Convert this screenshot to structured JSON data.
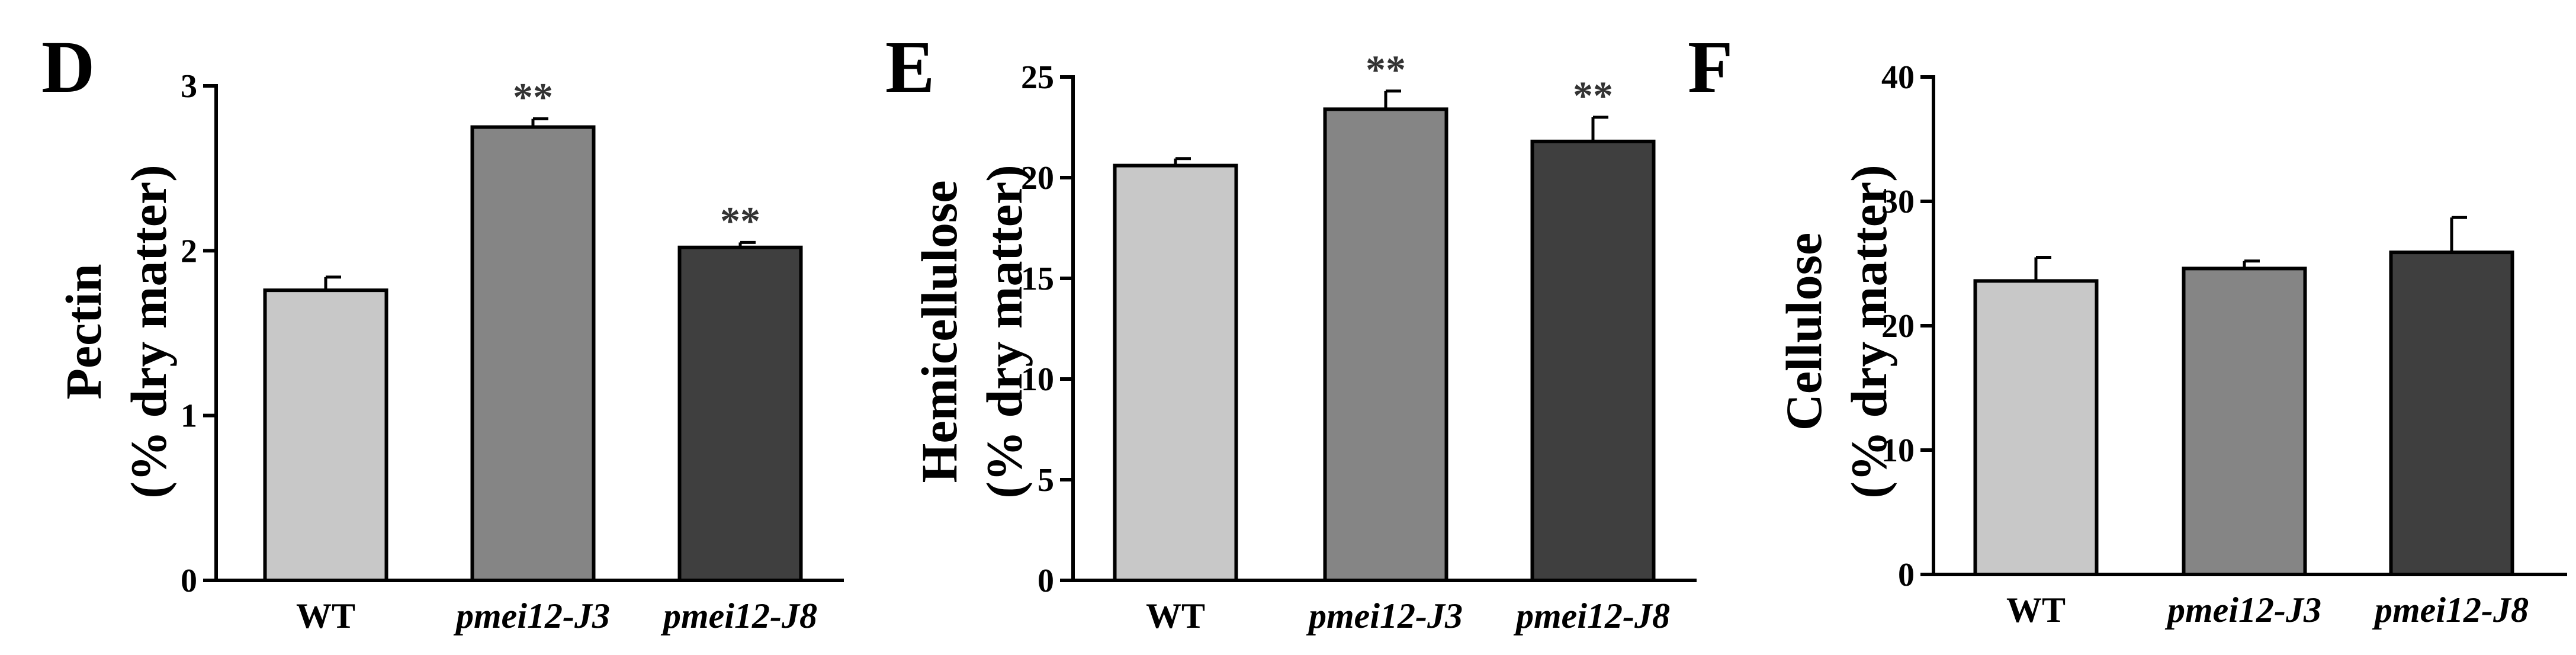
{
  "chart_data": [
    {
      "type": "bar",
      "panel": "D",
      "ylabel_line1": "Pectin",
      "ylabel_line2": "(% dry matter)",
      "categories": [
        "WT",
        "pmei12-J3",
        "pmei12-J8"
      ],
      "values": [
        1.76,
        2.75,
        2.02
      ],
      "errors": [
        0.08,
        0.05,
        0.03
      ],
      "significance": [
        "",
        "**",
        "**"
      ],
      "ylim": [
        0,
        3
      ],
      "yticks": [
        0,
        1,
        2,
        3
      ],
      "ytick_labels": [
        "0",
        "1",
        "2",
        "3"
      ]
    },
    {
      "type": "bar",
      "panel": "E",
      "ylabel_line1": "Hemicellulose",
      "ylabel_line2": "(% dry matter)",
      "categories": [
        "WT",
        "pmei12-J3",
        "pmei12-J8"
      ],
      "values": [
        20.6,
        23.4,
        21.8
      ],
      "errors": [
        0.35,
        0.9,
        1.2
      ],
      "significance": [
        "",
        "**",
        "**"
      ],
      "ylim": [
        0,
        25
      ],
      "yticks": [
        0,
        5,
        10,
        15,
        20,
        25
      ],
      "ytick_labels": [
        "0",
        "5",
        "10",
        "15",
        "20",
        "25"
      ]
    },
    {
      "type": "bar",
      "panel": "F",
      "ylabel_line1": "Cellulose",
      "ylabel_line2": "(% dry matter)",
      "categories": [
        "WT",
        "pmei12-J3",
        "pmei12-J8"
      ],
      "values": [
        23.6,
        24.6,
        25.9
      ],
      "errors": [
        1.9,
        0.6,
        2.8
      ],
      "significance": [
        "",
        "",
        ""
      ],
      "ylim": [
        0,
        40
      ],
      "yticks": [
        0,
        10,
        20,
        30,
        40
      ],
      "ytick_labels": [
        "0",
        "10",
        "20",
        "30",
        "40"
      ]
    }
  ],
  "colors": {
    "WT": "#c8c8c8",
    "J3": "#858585",
    "J8": "#3f3f3f",
    "axis": "#000000",
    "significance": "#333333"
  }
}
